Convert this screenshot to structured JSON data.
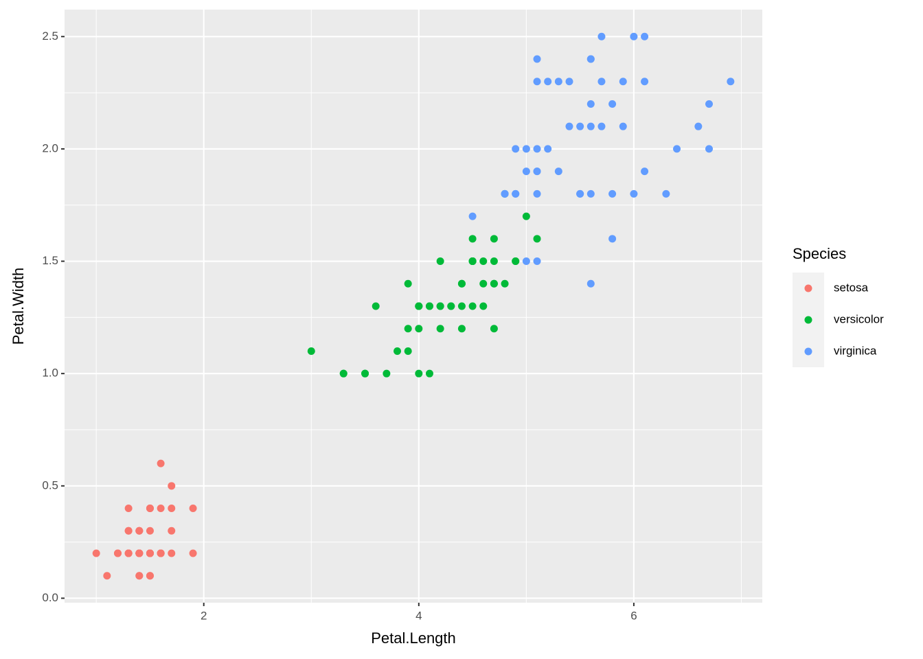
{
  "chart_data": {
    "type": "scatter",
    "x_label": "Petal.Length",
    "y_label": "Petal.Width",
    "legend_title": "Species",
    "legend_position": "right",
    "grid": true,
    "xlim": [
      0.705,
      7.195
    ],
    "ylim": [
      -0.02,
      2.62
    ],
    "xticks": [
      2,
      4,
      6
    ],
    "xminor_ticks": [
      1,
      3,
      5,
      7
    ],
    "yticks": [
      {
        "value": 0,
        "label": "0.0"
      },
      0.5,
      {
        "value": 1,
        "label": "1.0"
      },
      1.5,
      {
        "value": 2,
        "label": "2.0"
      },
      2.5
    ],
    "yminor_ticks": [
      0.25,
      0.75,
      1.25,
      1.75,
      2.25
    ],
    "series": [
      {
        "name": "setosa",
        "color": "#F8766D",
        "x": [
          1.4,
          1.4,
          1.3,
          1.5,
          1.4,
          1.7,
          1.4,
          1.5,
          1.4,
          1.5,
          1.5,
          1.6,
          1.4,
          1.1,
          1.2,
          1.5,
          1.3,
          1.4,
          1.7,
          1.5,
          1.7,
          1.5,
          1.0,
          1.7,
          1.9,
          1.6,
          1.6,
          1.5,
          1.4,
          1.6,
          1.6,
          1.5,
          1.5,
          1.4,
          1.5,
          1.2,
          1.3,
          1.4,
          1.3,
          1.5,
          1.3,
          1.3,
          1.3,
          1.6,
          1.9,
          1.4,
          1.6,
          1.4,
          1.5,
          1.4
        ],
        "values": [
          0.2,
          0.2,
          0.2,
          0.2,
          0.2,
          0.4,
          0.3,
          0.2,
          0.2,
          0.1,
          0.2,
          0.2,
          0.1,
          0.1,
          0.2,
          0.4,
          0.4,
          0.3,
          0.3,
          0.3,
          0.2,
          0.4,
          0.2,
          0.5,
          0.2,
          0.2,
          0.4,
          0.2,
          0.2,
          0.2,
          0.2,
          0.4,
          0.1,
          0.2,
          0.2,
          0.2,
          0.2,
          0.1,
          0.2,
          0.2,
          0.3,
          0.3,
          0.2,
          0.6,
          0.4,
          0.3,
          0.2,
          0.2,
          0.2,
          0.2
        ]
      },
      {
        "name": "versicolor",
        "color": "#00BA38",
        "x": [
          4.7,
          4.5,
          4.9,
          4.0,
          4.6,
          4.5,
          4.7,
          3.3,
          4.6,
          3.9,
          3.5,
          4.2,
          4.0,
          4.7,
          3.6,
          4.4,
          4.5,
          4.1,
          4.5,
          3.9,
          4.8,
          4.0,
          4.9,
          4.7,
          4.3,
          4.4,
          4.8,
          5.0,
          4.5,
          3.5,
          3.8,
          3.7,
          3.9,
          5.1,
          4.5,
          4.5,
          4.7,
          4.4,
          4.1,
          4.0,
          4.4,
          4.6,
          4.0,
          3.3,
          4.2,
          4.2,
          4.2,
          4.3,
          3.0,
          4.1
        ],
        "values": [
          1.4,
          1.5,
          1.5,
          1.3,
          1.5,
          1.3,
          1.6,
          1.0,
          1.3,
          1.4,
          1.0,
          1.5,
          1.0,
          1.4,
          1.3,
          1.4,
          1.5,
          1.0,
          1.5,
          1.1,
          1.8,
          1.3,
          1.5,
          1.2,
          1.3,
          1.4,
          1.4,
          1.7,
          1.5,
          1.0,
          1.1,
          1.0,
          1.2,
          1.6,
          1.5,
          1.6,
          1.5,
          1.3,
          1.3,
          1.3,
          1.2,
          1.4,
          1.2,
          1.0,
          1.3,
          1.2,
          1.3,
          1.3,
          1.1,
          1.3
        ]
      },
      {
        "name": "virginica",
        "color": "#619CFF",
        "x": [
          6.0,
          5.1,
          5.9,
          5.6,
          5.8,
          6.6,
          4.5,
          6.3,
          5.8,
          6.1,
          5.1,
          5.3,
          5.5,
          5.0,
          5.1,
          5.3,
          5.5,
          6.7,
          6.9,
          5.0,
          5.7,
          4.9,
          6.7,
          4.9,
          5.7,
          6.0,
          4.8,
          4.9,
          5.6,
          5.8,
          6.1,
          6.4,
          5.6,
          5.1,
          5.6,
          6.1,
          5.6,
          5.5,
          4.8,
          5.4,
          5.6,
          5.1,
          5.1,
          5.9,
          5.7,
          5.2,
          5.0,
          5.2,
          5.4,
          5.1
        ],
        "values": [
          2.5,
          1.9,
          2.1,
          1.8,
          2.2,
          2.1,
          1.7,
          1.8,
          1.8,
          2.5,
          2.0,
          1.9,
          2.1,
          2.0,
          2.4,
          2.3,
          1.8,
          2.2,
          2.3,
          1.5,
          2.3,
          2.0,
          2.0,
          1.8,
          2.1,
          1.8,
          1.8,
          1.8,
          2.1,
          1.6,
          1.9,
          2.0,
          2.2,
          1.5,
          1.4,
          2.3,
          2.4,
          1.8,
          1.8,
          2.1,
          2.4,
          2.3,
          1.9,
          2.3,
          2.5,
          2.3,
          1.9,
          2.0,
          2.3,
          1.8
        ]
      }
    ]
  }
}
